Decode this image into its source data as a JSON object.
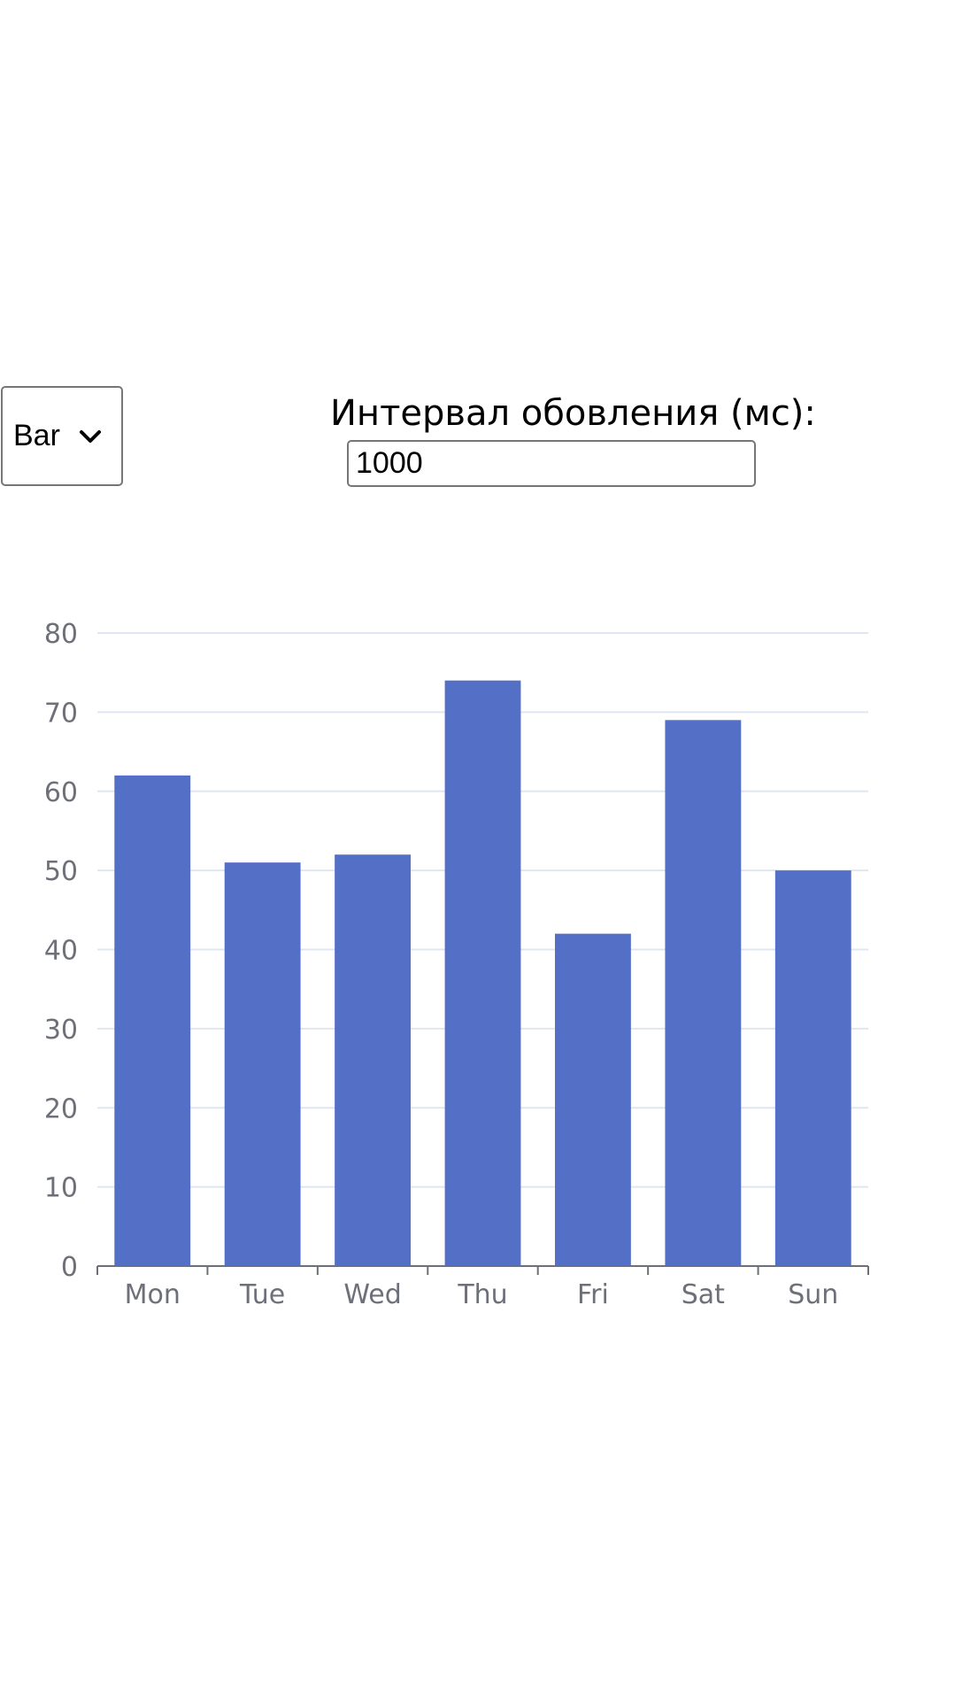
{
  "controls": {
    "chart_type_selected": "Bar",
    "interval_label": "Интервал обовления (мс):",
    "interval_value": "1000"
  },
  "chart_data": {
    "type": "bar",
    "categories": [
      "Mon",
      "Tue",
      "Wed",
      "Thu",
      "Fri",
      "Sat",
      "Sun"
    ],
    "values": [
      62,
      51,
      52,
      74,
      42,
      69,
      50
    ],
    "ylim": [
      0,
      80
    ],
    "yticks": [
      "0",
      "10",
      "20",
      "30",
      "40",
      "50",
      "60",
      "70",
      "80"
    ],
    "grid": true,
    "colors": {
      "bar": "#5470c6",
      "grid": "#e0e6f1",
      "axis": "#6e7079",
      "label": "#6e7079"
    }
  }
}
